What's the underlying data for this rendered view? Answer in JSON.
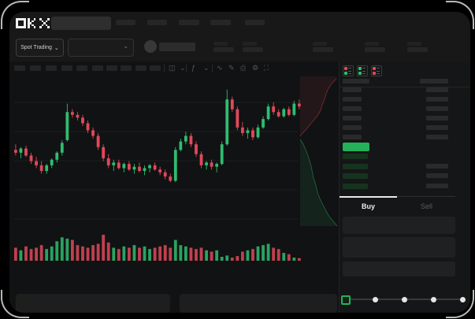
{
  "brand": {
    "name": "OKX"
  },
  "header": {
    "nav_placeholder_count": 5,
    "stats_placeholder_count": 5
  },
  "trading_controls": {
    "mode_label": "Spot Trading",
    "mode_chevron": "⌄",
    "pair_chevron": "⌄"
  },
  "toolbar": {
    "interval_placeholder_count": 10,
    "icons": [
      {
        "name": "candle-type-icon",
        "glyph": "◫"
      },
      {
        "name": "chevron-down-icon",
        "glyph": "⌄"
      },
      {
        "name": "indicators-icon",
        "glyph": "ƒ"
      },
      {
        "name": "chevron-down-icon",
        "glyph": "⌄"
      },
      {
        "name": "line-tool-icon",
        "glyph": "∿"
      },
      {
        "name": "draw-icon",
        "glyph": "✎"
      },
      {
        "name": "screenshot-icon",
        "glyph": "⎙"
      },
      {
        "name": "settings-gear-icon",
        "glyph": "⚙"
      },
      {
        "name": "fullscreen-icon",
        "glyph": "⛶"
      }
    ]
  },
  "orderbook": {
    "view_icons": [
      "book-both-icon",
      "book-bids-icon",
      "book-asks-icon"
    ],
    "ask_row_count": 6,
    "bid_row_count": 4,
    "bid_amount_row_count": 3
  },
  "trade_panel": {
    "tabs": [
      {
        "label": "Buy",
        "active": true
      },
      {
        "label": "Sell",
        "active": false
      }
    ],
    "slider": {
      "stops": [
        0,
        25,
        50,
        75,
        100
      ],
      "value": 0
    },
    "submit_label": ""
  },
  "colors": {
    "accent_green": "#23b159",
    "candle_up": "#2ebd70",
    "candle_down": "#e0495a",
    "depth_ask_fill": "rgba(224,73,90,0.09)",
    "depth_ask_line": "rgba(224,73,90,0.5)",
    "depth_bid_fill": "rgba(46,189,112,0.10)",
    "depth_bid_line": "rgba(46,189,112,0.5)",
    "grid_line": "#1d1e1f"
  },
  "chart_data": {
    "type": "candlestick",
    "title": "",
    "xlabel": "",
    "ylabel": "",
    "axes_visible": false,
    "grid": true,
    "price_range": [
      0,
      100
    ],
    "candles": [
      [
        56,
        60,
        52,
        54
      ],
      [
        54,
        58,
        50,
        57
      ],
      [
        57,
        59,
        51,
        52
      ],
      [
        52,
        54,
        46,
        48
      ],
      [
        48,
        51,
        43,
        45
      ],
      [
        45,
        48,
        39,
        41
      ],
      [
        41,
        46,
        39,
        45
      ],
      [
        45,
        50,
        43,
        49
      ],
      [
        49,
        55,
        47,
        54
      ],
      [
        54,
        63,
        52,
        61
      ],
      [
        63,
        89,
        62,
        83
      ],
      [
        83,
        85,
        79,
        81
      ],
      [
        81,
        83,
        77,
        79
      ],
      [
        79,
        81,
        73,
        75
      ],
      [
        75,
        77,
        68,
        70
      ],
      [
        70,
        72,
        64,
        66
      ],
      [
        66,
        68,
        56,
        58
      ],
      [
        58,
        60,
        48,
        50
      ],
      [
        50,
        53,
        43,
        45
      ],
      [
        45,
        49,
        41,
        47
      ],
      [
        47,
        49,
        42,
        43
      ],
      [
        43,
        47,
        40,
        46
      ],
      [
        46,
        48,
        41,
        42
      ],
      [
        42,
        46,
        39,
        44
      ],
      [
        44,
        47,
        40,
        41
      ],
      [
        41,
        45,
        38,
        43
      ],
      [
        43,
        46,
        40,
        45
      ],
      [
        45,
        47,
        41,
        42
      ],
      [
        42,
        44,
        38,
        40
      ],
      [
        40,
        42,
        35,
        37
      ],
      [
        37,
        39,
        33,
        34
      ],
      [
        34,
        58,
        33,
        56
      ],
      [
        56,
        64,
        55,
        62
      ],
      [
        62,
        69,
        60,
        66
      ],
      [
        66,
        68,
        58,
        60
      ],
      [
        60,
        62,
        51,
        53
      ],
      [
        53,
        55,
        43,
        45
      ],
      [
        45,
        48,
        42,
        47
      ],
      [
        47,
        49,
        42,
        44
      ],
      [
        44,
        47,
        40,
        46
      ],
      [
        46,
        62,
        45,
        60
      ],
      [
        60,
        99,
        59,
        92
      ],
      [
        92,
        94,
        83,
        85
      ],
      [
        85,
        87,
        70,
        72
      ],
      [
        72,
        76,
        66,
        68
      ],
      [
        68,
        72,
        64,
        70
      ],
      [
        70,
        72,
        63,
        65
      ],
      [
        65,
        74,
        64,
        72
      ],
      [
        72,
        80,
        71,
        78
      ],
      [
        78,
        89,
        77,
        87
      ],
      [
        87,
        90,
        81,
        83
      ],
      [
        83,
        85,
        79,
        80
      ],
      [
        80,
        86,
        79,
        85
      ],
      [
        85,
        87,
        80,
        81
      ],
      [
        81,
        91,
        80,
        89
      ],
      [
        89,
        92,
        85,
        87
      ]
    ],
    "volumes": [
      0.5,
      0.4,
      0.55,
      0.45,
      0.5,
      0.6,
      0.45,
      0.55,
      0.75,
      0.9,
      0.85,
      0.8,
      0.6,
      0.55,
      0.5,
      0.6,
      0.65,
      1.0,
      0.7,
      0.5,
      0.45,
      0.55,
      0.5,
      0.6,
      0.5,
      0.55,
      0.45,
      0.5,
      0.55,
      0.6,
      0.5,
      0.8,
      0.6,
      0.55,
      0.5,
      0.45,
      0.5,
      0.4,
      0.35,
      0.4,
      0.15,
      0.2,
      0.12,
      0.18,
      0.35,
      0.4,
      0.45,
      0.55,
      0.6,
      0.65,
      0.5,
      0.45,
      0.3,
      0.25,
      0.12,
      0.1
    ],
    "depth": {
      "ask_points": [
        [
          427,
          100
        ],
        [
          421,
          106
        ],
        [
          417,
          112
        ],
        [
          414,
          119
        ],
        [
          412,
          126
        ],
        [
          409,
          133
        ],
        [
          407,
          140
        ],
        [
          403,
          147
        ],
        [
          398,
          153
        ],
        [
          393,
          159
        ],
        [
          389,
          164
        ],
        [
          384,
          169
        ],
        [
          381,
          173
        ]
      ],
      "bid_points": [
        [
          381,
          177
        ],
        [
          385,
          183
        ],
        [
          388,
          190
        ],
        [
          391,
          198
        ],
        [
          394,
          207
        ],
        [
          396,
          216
        ],
        [
          398,
          226
        ],
        [
          401,
          235
        ],
        [
          403,
          244
        ],
        [
          406,
          252
        ],
        [
          410,
          260
        ],
        [
          414,
          268
        ],
        [
          418,
          275
        ],
        [
          423,
          281
        ],
        [
          428,
          287
        ]
      ]
    }
  }
}
